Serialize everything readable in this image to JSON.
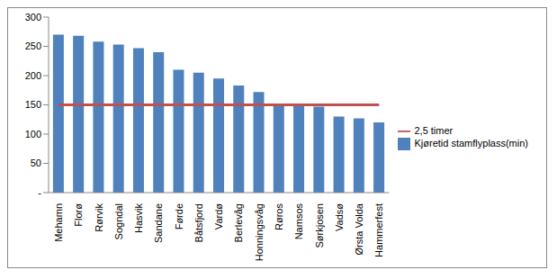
{
  "chart_data": {
    "type": "bar",
    "categories": [
      "Mehamn",
      "Florø",
      "Rørvik",
      "Sogndal",
      "Hasvik",
      "Sandane",
      "Førde",
      "Båtsfjord",
      "Vardø",
      "Berlevåg",
      "Honningsvåg",
      "Røros",
      "Namsos",
      "Sørkjosen",
      "Vadsø",
      "Ørsta Volda",
      "Hammerfest"
    ],
    "series": [
      {
        "name": "Kjøretid stamflyplass(min)",
        "type": "bar",
        "color": "#4f81bd",
        "values": [
          270,
          268,
          258,
          253,
          247,
          240,
          210,
          205,
          195,
          183,
          172,
          150,
          148,
          147,
          130,
          127,
          120
        ]
      },
      {
        "name": "2,5 timer",
        "type": "line",
        "color": "#c0504d",
        "values": [
          150,
          150,
          150,
          150,
          150,
          150,
          150,
          150,
          150,
          150,
          150,
          150,
          150,
          150,
          150,
          150,
          150
        ]
      }
    ],
    "ylim": [
      0,
      300
    ],
    "yticks": [
      {
        "value": 0,
        "label": "-"
      },
      50,
      100,
      150,
      200,
      250,
      300
    ],
    "grid": false,
    "legend": "right"
  }
}
